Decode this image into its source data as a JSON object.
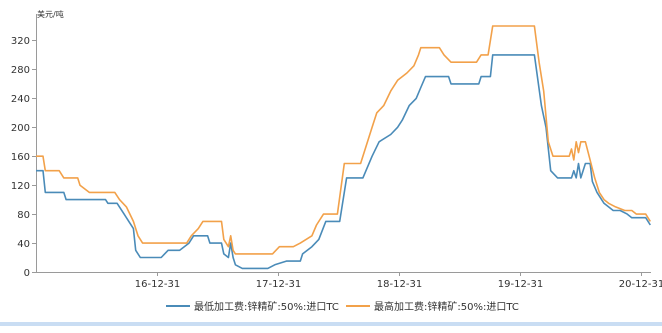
{
  "chart_data": {
    "type": "line",
    "ylabel": "美元/吨",
    "ylim": [
      0,
      340
    ],
    "yticks": [
      0,
      40,
      80,
      120,
      160,
      200,
      240,
      280,
      320
    ],
    "xlim": [
      "2016-01-01",
      "2021-01-31"
    ],
    "xticks": [
      {
        "date": "2016-12-31",
        "label": "16-12-31"
      },
      {
        "date": "2017-12-31",
        "label": "17-12-31"
      },
      {
        "date": "2018-12-31",
        "label": "18-12-31"
      },
      {
        "date": "2019-12-31",
        "label": "19-12-31"
      },
      {
        "date": "2020-12-31",
        "label": "20-12-31"
      }
    ],
    "grid": false,
    "legend_position": "bottom",
    "colors": {
      "low": "#4a8bb8",
      "high": "#f2a14a"
    },
    "series": [
      {
        "name": "最低加工费:锌精矿:50%:进口TC",
        "key": "low",
        "points": [
          [
            "2016-01-01",
            140
          ],
          [
            "2016-01-22",
            140
          ],
          [
            "2016-01-29",
            110
          ],
          [
            "2016-03-25",
            110
          ],
          [
            "2016-04-01",
            100
          ],
          [
            "2016-07-29",
            100
          ],
          [
            "2016-08-05",
            95
          ],
          [
            "2016-09-02",
            95
          ],
          [
            "2016-09-23",
            80
          ],
          [
            "2016-10-21",
            60
          ],
          [
            "2016-10-28",
            30
          ],
          [
            "2016-11-11",
            20
          ],
          [
            "2017-01-13",
            20
          ],
          [
            "2017-02-03",
            30
          ],
          [
            "2017-03-10",
            30
          ],
          [
            "2017-04-07",
            40
          ],
          [
            "2017-04-21",
            50
          ],
          [
            "2017-06-02",
            50
          ],
          [
            "2017-06-09",
            40
          ],
          [
            "2017-07-14",
            40
          ],
          [
            "2017-07-21",
            25
          ],
          [
            "2017-08-04",
            20
          ],
          [
            "2017-08-11",
            40
          ],
          [
            "2017-08-18",
            20
          ],
          [
            "2017-08-25",
            10
          ],
          [
            "2017-09-15",
            5
          ],
          [
            "2017-12-01",
            5
          ],
          [
            "2017-12-22",
            10
          ],
          [
            "2018-01-26",
            15
          ],
          [
            "2018-03-09",
            15
          ],
          [
            "2018-03-16",
            25
          ],
          [
            "2018-04-13",
            35
          ],
          [
            "2018-05-04",
            45
          ],
          [
            "2018-05-25",
            70
          ],
          [
            "2018-07-06",
            70
          ],
          [
            "2018-07-27",
            130
          ],
          [
            "2018-09-14",
            130
          ],
          [
            "2018-10-12",
            160
          ],
          [
            "2018-11-02",
            180
          ],
          [
            "2018-12-07",
            190
          ],
          [
            "2018-12-28",
            200
          ],
          [
            "2019-01-11",
            210
          ],
          [
            "2019-02-01",
            230
          ],
          [
            "2019-02-22",
            240
          ],
          [
            "2019-03-08",
            255
          ],
          [
            "2019-03-22",
            270
          ],
          [
            "2019-05-31",
            270
          ],
          [
            "2019-06-07",
            260
          ],
          [
            "2019-08-30",
            260
          ],
          [
            "2019-09-06",
            270
          ],
          [
            "2019-10-04",
            270
          ],
          [
            "2019-10-11",
            300
          ],
          [
            "2020-02-14",
            300
          ],
          [
            "2020-03-06",
            230
          ],
          [
            "2020-03-20",
            200
          ],
          [
            "2020-04-03",
            140
          ],
          [
            "2020-04-24",
            130
          ],
          [
            "2020-06-05",
            130
          ],
          [
            "2020-06-12",
            140
          ],
          [
            "2020-06-19",
            130
          ],
          [
            "2020-06-26",
            150
          ],
          [
            "2020-07-03",
            130
          ],
          [
            "2020-07-17",
            150
          ],
          [
            "2020-07-31",
            150
          ],
          [
            "2020-08-07",
            125
          ],
          [
            "2020-08-21",
            110
          ],
          [
            "2020-09-11",
            95
          ],
          [
            "2020-09-25",
            90
          ],
          [
            "2020-10-09",
            85
          ],
          [
            "2020-10-30",
            85
          ],
          [
            "2020-11-20",
            80
          ],
          [
            "2020-12-04",
            75
          ],
          [
            "2021-01-15",
            75
          ],
          [
            "2021-01-29",
            65
          ]
        ]
      },
      {
        "name": "最高加工费:锌精矿:50%:进口TC",
        "key": "high",
        "points": [
          [
            "2016-01-01",
            160
          ],
          [
            "2016-01-22",
            160
          ],
          [
            "2016-01-29",
            140
          ],
          [
            "2016-03-11",
            140
          ],
          [
            "2016-03-25",
            130
          ],
          [
            "2016-05-06",
            130
          ],
          [
            "2016-05-13",
            120
          ],
          [
            "2016-06-10",
            110
          ],
          [
            "2016-08-26",
            110
          ],
          [
            "2016-09-09",
            100
          ],
          [
            "2016-09-30",
            90
          ],
          [
            "2016-10-21",
            70
          ],
          [
            "2016-11-04",
            50
          ],
          [
            "2016-11-18",
            40
          ],
          [
            "2017-03-31",
            40
          ],
          [
            "2017-04-14",
            50
          ],
          [
            "2017-05-05",
            60
          ],
          [
            "2017-05-19",
            70
          ],
          [
            "2017-07-14",
            70
          ],
          [
            "2017-07-21",
            45
          ],
          [
            "2017-08-04",
            35
          ],
          [
            "2017-08-11",
            50
          ],
          [
            "2017-08-18",
            30
          ],
          [
            "2017-08-25",
            25
          ],
          [
            "2017-12-15",
            25
          ],
          [
            "2018-01-05",
            35
          ],
          [
            "2018-02-16",
            35
          ],
          [
            "2018-03-09",
            40
          ],
          [
            "2018-04-13",
            50
          ],
          [
            "2018-04-27",
            65
          ],
          [
            "2018-05-18",
            80
          ],
          [
            "2018-06-29",
            80
          ],
          [
            "2018-07-20",
            150
          ],
          [
            "2018-09-07",
            150
          ],
          [
            "2018-09-28",
            180
          ],
          [
            "2018-10-12",
            200
          ],
          [
            "2018-10-26",
            220
          ],
          [
            "2018-11-16",
            230
          ],
          [
            "2018-12-07",
            250
          ],
          [
            "2018-12-28",
            265
          ],
          [
            "2019-01-25",
            275
          ],
          [
            "2019-02-15",
            285
          ],
          [
            "2019-03-01",
            300
          ],
          [
            "2019-03-08",
            310
          ],
          [
            "2019-05-03",
            310
          ],
          [
            "2019-05-17",
            300
          ],
          [
            "2019-06-07",
            290
          ],
          [
            "2019-08-23",
            290
          ],
          [
            "2019-09-06",
            300
          ],
          [
            "2019-09-27",
            300
          ],
          [
            "2019-10-11",
            340
          ],
          [
            "2020-02-14",
            340
          ],
          [
            "2020-02-28",
            290
          ],
          [
            "2020-03-13",
            250
          ],
          [
            "2020-03-27",
            180
          ],
          [
            "2020-04-10",
            160
          ],
          [
            "2020-05-29",
            160
          ],
          [
            "2020-06-05",
            170
          ],
          [
            "2020-06-12",
            155
          ],
          [
            "2020-06-19",
            180
          ],
          [
            "2020-06-26",
            165
          ],
          [
            "2020-07-03",
            180
          ],
          [
            "2020-07-17",
            180
          ],
          [
            "2020-07-31",
            155
          ],
          [
            "2020-08-14",
            130
          ],
          [
            "2020-08-28",
            110
          ],
          [
            "2020-09-11",
            100
          ],
          [
            "2020-09-25",
            95
          ],
          [
            "2020-10-16",
            90
          ],
          [
            "2020-11-13",
            85
          ],
          [
            "2020-12-04",
            85
          ],
          [
            "2020-12-18",
            80
          ],
          [
            "2021-01-15",
            80
          ],
          [
            "2021-01-29",
            70
          ]
        ]
      }
    ]
  }
}
